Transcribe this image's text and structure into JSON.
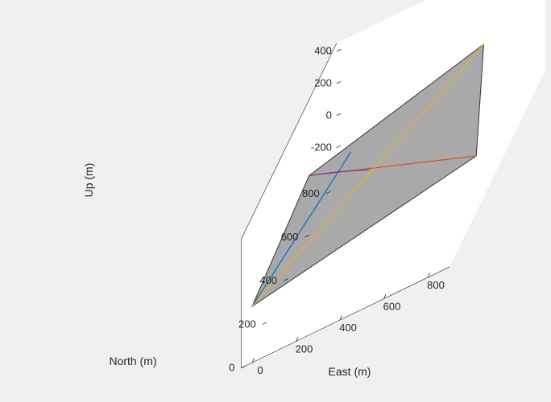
{
  "figure": {
    "background_color": "#f0f0f0",
    "axes_background_color": "#ffffff"
  },
  "chart_data": {
    "type": "line",
    "view": "3d",
    "title": "",
    "xlabel": "East (m)",
    "ylabel": "North (m)",
    "zlabel": "Up (m)",
    "xlim": [
      -50,
      900
    ],
    "ylim": [
      0,
      900
    ],
    "zlim": [
      -350,
      450
    ],
    "xticks": [
      {
        "value": 0,
        "label": "0"
      },
      {
        "value": 200,
        "label": "200"
      },
      {
        "value": 400,
        "label": "400"
      },
      {
        "value": 600,
        "label": "600"
      },
      {
        "value": 800,
        "label": "800"
      }
    ],
    "yticks": [
      {
        "value": 0,
        "label": "0"
      },
      {
        "value": 200,
        "label": "200"
      },
      {
        "value": 400,
        "label": "400"
      },
      {
        "value": 600,
        "label": "600"
      },
      {
        "value": 800,
        "label": "800"
      }
    ],
    "zticks": [
      {
        "value": -200,
        "label": "-200"
      },
      {
        "value": 0,
        "label": "0"
      },
      {
        "value": 200,
        "label": "200"
      },
      {
        "value": 400,
        "label": "400"
      }
    ],
    "grid": false,
    "legend": "none",
    "ground_plane": {
      "corners": [
        [
          0,
          0,
          0
        ],
        [
          900,
          250,
          0
        ],
        [
          620,
          900,
          0
        ],
        [
          -40,
          620,
          0
        ]
      ],
      "fill": "#a9a9a9",
      "edge": "#333333"
    },
    "series": [
      {
        "color": "#0072bd",
        "x": [
          0,
          80,
          100,
          110,
          120,
          130,
          140
        ],
        "y": [
          0,
          360,
          450,
          500,
          545,
          585,
          640
        ],
        "z": [
          0,
          0,
          0,
          0,
          0,
          0,
          0
        ]
      },
      {
        "color": "#d95319",
        "x": [
          -40,
          900
        ],
        "y": [
          620,
          250
        ],
        "z": [
          0,
          0
        ]
      },
      {
        "color": "#edb120",
        "x": [
          0,
          620
        ],
        "y": [
          0,
          900
        ],
        "z": [
          0,
          0
        ]
      },
      {
        "color": "#7e2f8e",
        "x": [
          -40,
          140,
          300
        ],
        "y": [
          620,
          550,
          480
        ],
        "z": [
          0,
          0,
          0
        ]
      }
    ]
  }
}
